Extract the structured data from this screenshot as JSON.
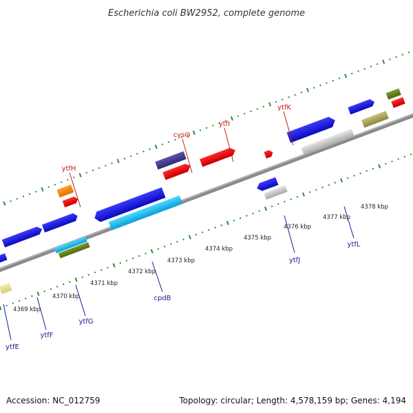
{
  "title": "Escherichia coli BW2952, complete genome",
  "footer": {
    "accession": "Accession: NC_012759",
    "topology": "Topology: circular; Length: 4,578,159 bp; Genes: 4,194"
  },
  "colors": {
    "backbone": "#8a8a8a",
    "tick": "#2d8a2d",
    "forward": "#1515dd",
    "reverse": "#ee1111",
    "label_top": "#d01515",
    "label_bottom": "#1a1a9a"
  },
  "scale": {
    "unit": "kbp",
    "labels": [
      "4369 kbp",
      "4370 kbp",
      "4371 kbp",
      "4372 kbp",
      "4373 kbp",
      "4374 kbp",
      "4375 kbp",
      "4376 kbp",
      "4377 kbp",
      "4378 kbp"
    ]
  },
  "genes_top": [
    "ytfH",
    "cysQ",
    "ytfI",
    "ytfK"
  ],
  "genes_bottom": [
    "ytfE",
    "ytfF",
    "ytfG",
    "cpdB",
    "ytfJ",
    "ytfL"
  ]
}
